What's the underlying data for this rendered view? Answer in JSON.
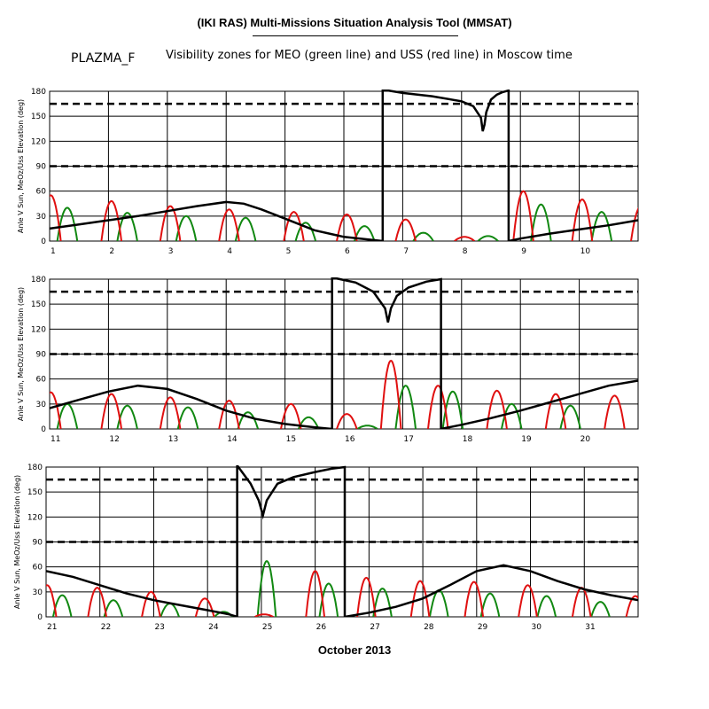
{
  "header": {
    "title": "(IKI RAS) Multi-Missions Situation Analysis Tool (MMSAT)",
    "left_label": "PLAZMA_F",
    "subtitle": "Visibility zones for MEO (green line) and USS (red line) in Moscow time"
  },
  "footer": {
    "xlabel": "October 2013"
  },
  "chart_data": [
    {
      "type": "line",
      "ylabel": "Anle V Sun, MeOz/Uss Elevation (deg)",
      "xlim": [
        1,
        11
      ],
      "ylim": [
        0,
        180
      ],
      "x_ticks": [
        "1",
        "2",
        "3",
        "4",
        "5",
        "6",
        "7",
        "8",
        "9",
        "10"
      ],
      "y_ticks": [
        "0",
        "30",
        "60",
        "90",
        "120",
        "150",
        "180"
      ],
      "reference_lines": [
        90,
        165
      ],
      "sun_angle": {
        "x": [
          1,
          1.5,
          2,
          2.5,
          3,
          3.5,
          4,
          4.3,
          4.6,
          5,
          5.5,
          6,
          6.4,
          6.66,
          6.66,
          7,
          7.5,
          8,
          8.2,
          8.33,
          8.36,
          8.39,
          8.42,
          8.5,
          8.6,
          8.7,
          8.8,
          8.8,
          9,
          9.5,
          10,
          10.5,
          11
        ],
        "y": [
          15,
          20,
          25,
          30,
          36,
          42,
          47,
          45,
          38,
          27,
          13,
          5,
          2,
          0,
          182,
          178,
          174,
          168,
          162,
          148,
          132,
          140,
          155,
          170,
          176,
          179,
          181,
          0,
          3,
          9,
          14,
          19,
          25
        ]
      },
      "red_peaks": [
        [
          1.02,
          55
        ],
        [
          2.05,
          48
        ],
        [
          3.05,
          42
        ],
        [
          4.05,
          38
        ],
        [
          5.15,
          35
        ],
        [
          6.05,
          32
        ],
        [
          7.05,
          26
        ],
        [
          8.05,
          5
        ],
        [
          9.05,
          60
        ],
        [
          10.05,
          50
        ],
        [
          11.05,
          42
        ]
      ],
      "green_peaks": [
        [
          1.3,
          40
        ],
        [
          2.32,
          34
        ],
        [
          3.32,
          30
        ],
        [
          4.33,
          28
        ],
        [
          5.35,
          22
        ],
        [
          6.35,
          18
        ],
        [
          7.35,
          10
        ],
        [
          8.45,
          6
        ],
        [
          9.35,
          44
        ],
        [
          10.38,
          35
        ]
      ]
    },
    {
      "type": "line",
      "ylabel": "Anle V Sun, MeOz/Uss Elevation (deg)",
      "xlim": [
        11,
        21
      ],
      "ylim": [
        0,
        180
      ],
      "x_ticks": [
        "11",
        "12",
        "13",
        "14",
        "15",
        "16",
        "17",
        "18",
        "19",
        "20"
      ],
      "y_ticks": [
        "0",
        "30",
        "60",
        "90",
        "120",
        "150",
        "180"
      ],
      "reference_lines": [
        90,
        165
      ],
      "sun_angle": {
        "x": [
          11,
          11.5,
          12,
          12.5,
          13,
          13.5,
          14,
          14.5,
          15,
          15.5,
          15.8,
          15.8,
          16.2,
          16.5,
          16.7,
          16.75,
          16.8,
          16.9,
          17.1,
          17.4,
          17.65,
          17.65,
          18,
          18.5,
          19,
          19.5,
          20,
          20.5,
          21
        ],
        "y": [
          25,
          35,
          45,
          52,
          48,
          36,
          22,
          12,
          6,
          2,
          0,
          182,
          176,
          165,
          145,
          128,
          145,
          160,
          170,
          177,
          180,
          0,
          5,
          13,
          22,
          32,
          42,
          52,
          58
        ]
      },
      "red_peaks": [
        [
          11.02,
          44
        ],
        [
          12.05,
          42
        ],
        [
          13.05,
          38
        ],
        [
          14.05,
          34
        ],
        [
          15.1,
          30
        ],
        [
          16.05,
          18
        ],
        [
          16.8,
          82
        ],
        [
          17.6,
          52
        ],
        [
          18.6,
          46
        ],
        [
          19.6,
          42
        ],
        [
          20.6,
          40
        ]
      ],
      "green_peaks": [
        [
          11.3,
          30
        ],
        [
          12.32,
          28
        ],
        [
          13.35,
          26
        ],
        [
          14.37,
          20
        ],
        [
          15.4,
          14
        ],
        [
          16.4,
          4
        ],
        [
          17.05,
          52
        ],
        [
          17.85,
          45
        ],
        [
          18.85,
          30
        ],
        [
          19.85,
          28
        ]
      ]
    },
    {
      "type": "line",
      "ylabel": "Anle V Sun, MeOz/Uss Elevation (deg)",
      "xlim": [
        21,
        32
      ],
      "ylim": [
        0,
        180
      ],
      "x_ticks": [
        "21",
        "22",
        "23",
        "24",
        "25",
        "26",
        "27",
        "28",
        "29",
        "30",
        "31"
      ],
      "y_ticks": [
        "0",
        "30",
        "60",
        "90",
        "120",
        "150",
        "180"
      ],
      "reference_lines": [
        90,
        165
      ],
      "sun_angle": {
        "x": [
          21,
          21.5,
          22,
          22.5,
          23,
          23.5,
          24,
          24.4,
          24.55,
          24.55,
          24.8,
          24.95,
          25.03,
          25.1,
          25.3,
          25.6,
          26,
          26.3,
          26.55,
          26.55,
          27,
          27.5,
          28,
          28.5,
          29,
          29.5,
          30,
          30.5,
          31,
          31.5,
          32
        ],
        "y": [
          55,
          48,
          38,
          28,
          20,
          14,
          8,
          3,
          0,
          182,
          160,
          140,
          122,
          140,
          160,
          168,
          174,
          178,
          180,
          0,
          5,
          12,
          22,
          38,
          55,
          62,
          55,
          43,
          33,
          26,
          20
        ]
      },
      "red_peaks": [
        [
          21.02,
          38
        ],
        [
          21.95,
          35
        ],
        [
          22.95,
          30
        ],
        [
          23.95,
          22
        ],
        [
          25.05,
          3
        ],
        [
          26.0,
          55
        ],
        [
          26.95,
          47
        ],
        [
          27.95,
          43
        ],
        [
          28.95,
          42
        ],
        [
          29.95,
          38
        ],
        [
          30.95,
          35
        ],
        [
          31.95,
          25
        ]
      ],
      "green_peaks": [
        [
          21.3,
          26
        ],
        [
          22.25,
          20
        ],
        [
          23.3,
          16
        ],
        [
          24.3,
          6
        ],
        [
          25.1,
          67
        ],
        [
          26.25,
          40
        ],
        [
          27.25,
          34
        ],
        [
          28.3,
          32
        ],
        [
          29.25,
          28
        ],
        [
          30.3,
          25
        ],
        [
          31.3,
          18
        ]
      ]
    }
  ]
}
